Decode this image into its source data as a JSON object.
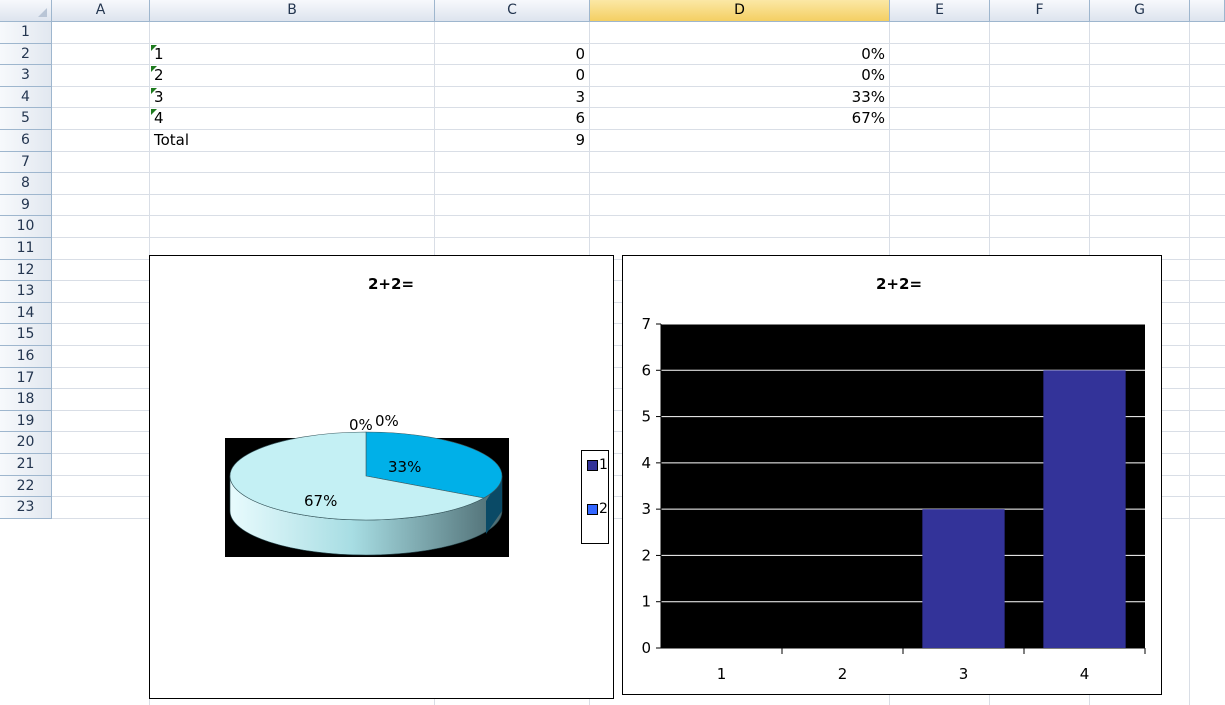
{
  "columns": [
    "A",
    "B",
    "C",
    "D",
    "E",
    "F",
    "G"
  ],
  "selected_column": "D",
  "rows": [
    "1",
    "2",
    "3",
    "4",
    "5",
    "6",
    "7",
    "8",
    "9",
    "10",
    "11",
    "12",
    "13",
    "14",
    "15",
    "16",
    "17",
    "18",
    "19",
    "20",
    "21",
    "22",
    "23"
  ],
  "table": [
    {
      "row": "2",
      "b": "1",
      "c": "0",
      "d": "0%"
    },
    {
      "row": "3",
      "b": "2",
      "c": "0",
      "d": "0%"
    },
    {
      "row": "4",
      "b": "3",
      "c": "3",
      "d": "33%"
    },
    {
      "row": "5",
      "b": "4",
      "c": "6",
      "d": "67%"
    },
    {
      "row": "6",
      "b": "Total",
      "c": "9",
      "d": ""
    }
  ],
  "colors": {
    "pie_slice_3": "#00b0e8",
    "pie_slice_4": "#c4f0f4",
    "bar_fill": "#333399",
    "plot_bg": "#000000",
    "header_selected": "#f4cf63"
  },
  "chart_data": [
    {
      "type": "pie",
      "title": "2+2=",
      "categories": [
        "1",
        "2",
        "3",
        "4"
      ],
      "values": [
        0,
        0,
        3,
        6
      ],
      "data_labels": [
        "0%",
        "0%",
        "33%",
        "67%"
      ],
      "legend_entries": [
        "1",
        "2"
      ],
      "legend_position": "right"
    },
    {
      "type": "bar",
      "title": "2+2=",
      "categories": [
        "1",
        "2",
        "3",
        "4"
      ],
      "values": [
        0,
        0,
        3,
        6
      ],
      "ylim": [
        0,
        7
      ],
      "yticks": [
        "0",
        "1",
        "2",
        "3",
        "4",
        "5",
        "6",
        "7"
      ],
      "grid": true
    }
  ]
}
